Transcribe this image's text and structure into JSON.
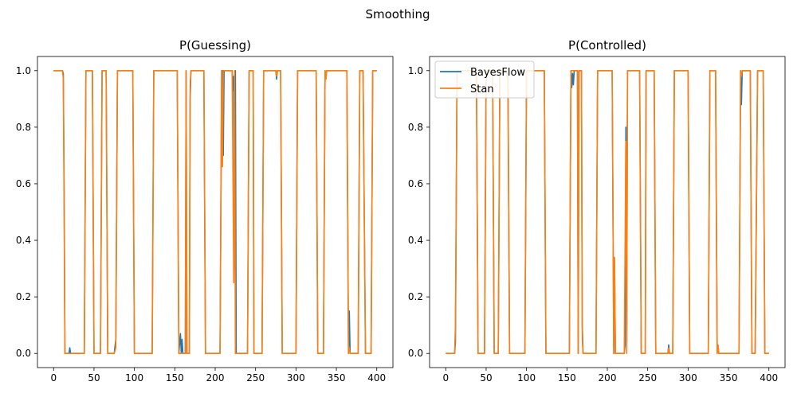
{
  "figure": {
    "suptitle": "Smoothing"
  },
  "chart_data": [
    {
      "type": "line",
      "title": "P(Guessing)",
      "xlim": [
        -20,
        420
      ],
      "ylim": [
        -0.05,
        1.05
      ],
      "xticks": [
        0,
        50,
        100,
        150,
        200,
        250,
        300,
        350,
        400
      ],
      "yticks": [
        0.0,
        0.2,
        0.4,
        0.6,
        0.8,
        1.0
      ],
      "legend": null,
      "series": [
        {
          "name": "BayesFlow",
          "color": "#1f77b4",
          "points": [
            [
              0,
              1
            ],
            [
              11,
              1
            ],
            [
              12,
              0.99
            ],
            [
              13,
              0.6
            ],
            [
              14,
              0
            ],
            [
              19,
              0
            ],
            [
              20,
              0.02
            ],
            [
              21,
              0
            ],
            [
              38,
              0
            ],
            [
              40,
              1
            ],
            [
              48,
              1
            ],
            [
              50,
              0
            ],
            [
              58,
              0
            ],
            [
              60,
              1
            ],
            [
              65,
              1
            ],
            [
              67,
              0
            ],
            [
              75,
              0
            ],
            [
              77,
              0.05
            ],
            [
              79,
              1
            ],
            [
              98,
              1
            ],
            [
              100,
              0
            ],
            [
              122,
              0
            ],
            [
              124,
              1
            ],
            [
              153,
              1
            ],
            [
              155,
              0
            ],
            [
              157,
              0.07
            ],
            [
              158,
              0
            ],
            [
              159,
              0.05
            ],
            [
              160,
              0
            ],
            [
              163,
              0
            ],
            [
              164,
              1
            ],
            [
              165,
              0
            ],
            [
              168,
              0
            ],
            [
              169,
              0.9
            ],
            [
              170,
              1
            ],
            [
              186,
              1
            ],
            [
              188,
              0
            ],
            [
              206,
              0
            ],
            [
              208,
              1
            ],
            [
              209,
              1
            ],
            [
              210,
              0.7
            ],
            [
              211,
              1
            ],
            [
              221,
              1
            ],
            [
              222,
              0.93
            ],
            [
              223,
              0.98
            ],
            [
              224,
              0.3
            ],
            [
              225,
              1
            ],
            [
              226,
              0
            ],
            [
              240,
              0
            ],
            [
              242,
              1
            ],
            [
              247,
              1
            ],
            [
              248,
              0
            ],
            [
              258,
              0
            ],
            [
              260,
              1
            ],
            [
              275,
              1
            ],
            [
              276,
              0.97
            ],
            [
              277,
              1
            ],
            [
              281,
              1
            ],
            [
              283,
              0
            ],
            [
              300,
              0
            ],
            [
              302,
              1
            ],
            [
              325,
              1
            ],
            [
              327,
              0
            ],
            [
              334,
              0
            ],
            [
              336,
              1
            ],
            [
              337,
              0.97
            ],
            [
              338,
              1
            ],
            [
              363,
              1
            ],
            [
              365,
              0
            ],
            [
              366,
              0.15
            ],
            [
              367,
              0
            ],
            [
              377,
              0
            ],
            [
              379,
              1
            ],
            [
              383,
              1
            ],
            [
              386,
              0
            ],
            [
              393,
              0
            ],
            [
              395,
              1
            ],
            [
              400,
              1
            ]
          ]
        },
        {
          "name": "Stan",
          "color": "#ff7f0e",
          "points": [
            [
              0,
              1
            ],
            [
              11,
              1
            ],
            [
              12,
              0.97
            ],
            [
              13,
              0.5
            ],
            [
              14,
              0
            ],
            [
              38,
              0
            ],
            [
              40,
              1
            ],
            [
              48,
              1
            ],
            [
              50,
              0
            ],
            [
              58,
              0
            ],
            [
              60,
              1
            ],
            [
              65,
              1
            ],
            [
              67,
              0
            ],
            [
              75,
              0
            ],
            [
              77,
              0.02
            ],
            [
              79,
              1
            ],
            [
              98,
              1
            ],
            [
              100,
              0
            ],
            [
              122,
              0
            ],
            [
              124,
              1
            ],
            [
              153,
              1
            ],
            [
              155,
              0
            ],
            [
              163,
              0
            ],
            [
              164,
              1
            ],
            [
              165,
              0
            ],
            [
              168,
              0
            ],
            [
              169,
              0.95
            ],
            [
              170,
              1
            ],
            [
              186,
              1
            ],
            [
              188,
              0
            ],
            [
              206,
              0
            ],
            [
              208,
              1
            ],
            [
              209,
              0.66
            ],
            [
              210,
              1
            ],
            [
              221,
              1
            ],
            [
              223,
              0.25
            ],
            [
              224,
              1
            ],
            [
              225,
              0
            ],
            [
              240,
              0
            ],
            [
              242,
              1
            ],
            [
              247,
              1
            ],
            [
              248,
              0
            ],
            [
              258,
              0
            ],
            [
              260,
              1
            ],
            [
              275,
              1
            ],
            [
              276,
              0.98
            ],
            [
              277,
              1
            ],
            [
              281,
              1
            ],
            [
              283,
              0
            ],
            [
              300,
              0
            ],
            [
              302,
              1
            ],
            [
              325,
              1
            ],
            [
              327,
              0
            ],
            [
              334,
              0
            ],
            [
              336,
              1
            ],
            [
              337,
              0.97
            ],
            [
              338,
              1
            ],
            [
              363,
              1
            ],
            [
              365,
              0
            ],
            [
              366,
              0.02
            ],
            [
              367,
              0
            ],
            [
              377,
              0
            ],
            [
              379,
              1
            ],
            [
              383,
              1
            ],
            [
              386,
              0
            ],
            [
              393,
              0
            ],
            [
              395,
              1
            ],
            [
              400,
              1
            ]
          ]
        }
      ]
    },
    {
      "type": "line",
      "title": "P(Controlled)",
      "xlim": [
        -20,
        420
      ],
      "ylim": [
        -0.05,
        1.05
      ],
      "xticks": [
        0,
        50,
        100,
        150,
        200,
        250,
        300,
        350,
        400
      ],
      "yticks": [
        0.0,
        0.2,
        0.4,
        0.6,
        0.8,
        1.0
      ],
      "legend": "upper-left",
      "series": [
        {
          "name": "BayesFlow",
          "color": "#1f77b4",
          "points": [
            [
              0,
              0
            ],
            [
              11,
              0
            ],
            [
              12,
              0.04
            ],
            [
              14,
              1
            ],
            [
              38,
              1
            ],
            [
              40,
              0
            ],
            [
              48,
              0
            ],
            [
              50,
              1
            ],
            [
              58,
              1
            ],
            [
              60,
              0
            ],
            [
              65,
              0
            ],
            [
              67,
              1
            ],
            [
              75,
              1
            ],
            [
              77,
              0.97
            ],
            [
              79,
              0
            ],
            [
              98,
              0
            ],
            [
              100,
              1
            ],
            [
              122,
              1
            ],
            [
              124,
              0
            ],
            [
              153,
              0
            ],
            [
              155,
              1
            ],
            [
              156,
              0.94
            ],
            [
              157,
              0.99
            ],
            [
              158,
              0.95
            ],
            [
              159,
              1
            ],
            [
              163,
              1
            ],
            [
              164,
              0
            ],
            [
              165,
              1
            ],
            [
              168,
              1
            ],
            [
              169,
              0.1
            ],
            [
              170,
              0
            ],
            [
              186,
              0
            ],
            [
              188,
              1
            ],
            [
              206,
              1
            ],
            [
              208,
              0
            ],
            [
              209,
              0.3
            ],
            [
              210,
              0
            ],
            [
              221,
              0
            ],
            [
              222,
              0.03
            ],
            [
              223,
              0.8
            ],
            [
              224,
              0.04
            ],
            [
              225,
              1
            ],
            [
              240,
              1
            ],
            [
              242,
              0
            ],
            [
              247,
              0
            ],
            [
              248,
              1
            ],
            [
              258,
              1
            ],
            [
              260,
              0
            ],
            [
              275,
              0
            ],
            [
              276,
              0.03
            ],
            [
              277,
              0
            ],
            [
              281,
              0
            ],
            [
              283,
              1
            ],
            [
              300,
              1
            ],
            [
              302,
              0
            ],
            [
              325,
              0
            ],
            [
              327,
              1
            ],
            [
              334,
              1
            ],
            [
              336,
              0
            ],
            [
              337,
              0.03
            ],
            [
              338,
              0
            ],
            [
              363,
              0
            ],
            [
              365,
              1
            ],
            [
              366,
              0.88
            ],
            [
              367,
              1
            ],
            [
              377,
              1
            ],
            [
              379,
              0
            ],
            [
              383,
              0
            ],
            [
              386,
              1
            ],
            [
              393,
              1
            ],
            [
              395,
              0
            ],
            [
              400,
              0
            ]
          ]
        },
        {
          "name": "Stan",
          "color": "#ff7f0e",
          "points": [
            [
              0,
              0
            ],
            [
              11,
              0
            ],
            [
              12,
              0.1
            ],
            [
              14,
              1
            ],
            [
              38,
              1
            ],
            [
              40,
              0
            ],
            [
              48,
              0
            ],
            [
              50,
              1
            ],
            [
              58,
              1
            ],
            [
              60,
              0
            ],
            [
              65,
              0
            ],
            [
              67,
              1
            ],
            [
              75,
              1
            ],
            [
              77,
              0.98
            ],
            [
              79,
              0
            ],
            [
              98,
              0
            ],
            [
              100,
              1
            ],
            [
              122,
              1
            ],
            [
              124,
              0
            ],
            [
              153,
              0
            ],
            [
              155,
              1
            ],
            [
              163,
              1
            ],
            [
              164,
              0
            ],
            [
              165,
              1
            ],
            [
              168,
              1
            ],
            [
              169,
              0.05
            ],
            [
              170,
              0
            ],
            [
              186,
              0
            ],
            [
              188,
              1
            ],
            [
              206,
              1
            ],
            [
              208,
              0
            ],
            [
              209,
              0.34
            ],
            [
              210,
              0
            ],
            [
              221,
              0
            ],
            [
              223,
              0.75
            ],
            [
              224,
              0
            ],
            [
              225,
              1
            ],
            [
              240,
              1
            ],
            [
              242,
              0
            ],
            [
              247,
              0
            ],
            [
              248,
              1
            ],
            [
              258,
              1
            ],
            [
              260,
              0
            ],
            [
              275,
              0
            ],
            [
              276,
              0.02
            ],
            [
              277,
              0
            ],
            [
              281,
              0
            ],
            [
              283,
              1
            ],
            [
              300,
              1
            ],
            [
              302,
              0
            ],
            [
              325,
              0
            ],
            [
              327,
              1
            ],
            [
              334,
              1
            ],
            [
              336,
              0
            ],
            [
              337,
              0.03
            ],
            [
              338,
              0
            ],
            [
              363,
              0
            ],
            [
              365,
              1
            ],
            [
              366,
              0.98
            ],
            [
              367,
              1
            ],
            [
              377,
              1
            ],
            [
              379,
              0
            ],
            [
              383,
              0
            ],
            [
              386,
              1
            ],
            [
              393,
              1
            ],
            [
              395,
              0
            ],
            [
              400,
              0
            ]
          ]
        }
      ]
    }
  ]
}
